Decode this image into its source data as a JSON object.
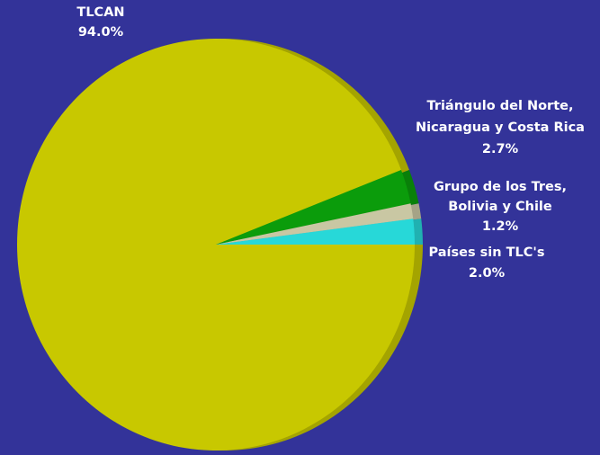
{
  "chart_data": {
    "type": "pie",
    "title": "",
    "slices": [
      {
        "label": "TLCAN",
        "value": 94.0,
        "value_text": "94.0%",
        "color": "#c8c800",
        "label_lines": [
          "TLCAN",
          "94.0%"
        ]
      },
      {
        "label": "Triángulo del Norte, Nicaragua y Costa Rica",
        "value": 2.7,
        "value_text": "2.7%",
        "color": "#0b9c0b",
        "label_lines": [
          "Triángulo del Norte,",
          "Nicaragua y Costa Rica",
          "2.7%"
        ]
      },
      {
        "label": "Grupo de los Tres, Bolivia y Chile",
        "value": 1.2,
        "value_text": "1.2%",
        "color": "#c9c7a3",
        "label_lines": [
          "Grupo de los Tres,",
          "Bolivia y Chile",
          "1.2%"
        ]
      },
      {
        "label": "Países sin TLC's",
        "value": 2.0,
        "value_text": "2.0%",
        "color": "#27d8d8",
        "label_lines": [
          "Países sin TLC's",
          "2.0%"
        ]
      }
    ],
    "style": "3d",
    "legend": "none"
  }
}
